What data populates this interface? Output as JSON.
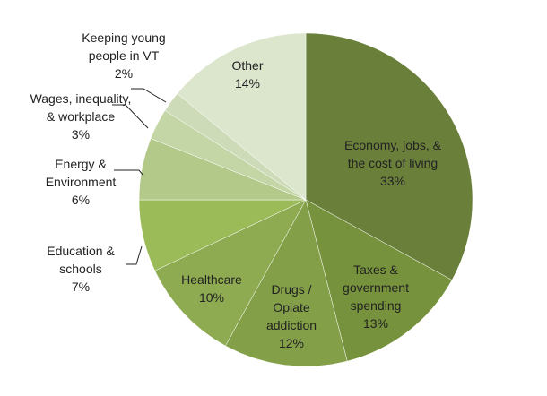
{
  "chart_data": {
    "type": "pie",
    "title": "",
    "start": "top",
    "direction": "clockwise",
    "slices": [
      {
        "label": [
          "Economy, jobs, &",
          "the cost of living"
        ],
        "value": 33,
        "pct": "33%",
        "color": "#6a7f3a"
      },
      {
        "label": [
          "Taxes &",
          "government",
          "spending"
        ],
        "value": 13,
        "pct": "13%",
        "color": "#76923c"
      },
      {
        "label": [
          "Drugs /",
          "Opiate",
          "addiction"
        ],
        "value": 12,
        "pct": "12%",
        "color": "#839f48"
      },
      {
        "label": [
          "Healthcare"
        ],
        "value": 10,
        "pct": "10%",
        "color": "#8fab52"
      },
      {
        "label": [
          "Education &",
          "schools"
        ],
        "value": 7,
        "pct": "7%",
        "color": "#9bbb59"
      },
      {
        "label": [
          "Energy &",
          "Environment"
        ],
        "value": 6,
        "pct": "6%",
        "color": "#b2c98a"
      },
      {
        "label": [
          "Wages, inequality,",
          "& workplace"
        ],
        "value": 3,
        "pct": "3%",
        "color": "#c4d6a6"
      },
      {
        "label": [
          "Keeping young",
          "people in VT"
        ],
        "value": 2,
        "pct": "2%",
        "color": "#cddbb8"
      },
      {
        "label": [
          "Other"
        ],
        "value": 14,
        "pct": "14%",
        "color": "#dce6cd"
      }
    ]
  }
}
